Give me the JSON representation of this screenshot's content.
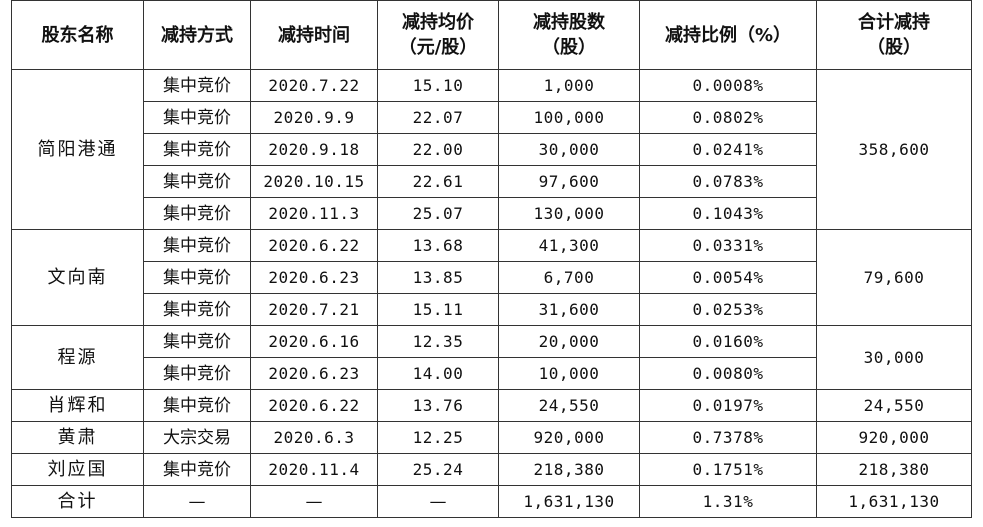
{
  "headers": {
    "shareholder": "股东名称",
    "method": "减持方式",
    "date": "减持时间",
    "avg_price": "减持均价\n（元/股）",
    "shares": "减持股数\n（股）",
    "ratio": "减持比例（%）",
    "total": "合计减持\n（股）"
  },
  "groups": [
    {
      "shareholder": "简阳港通",
      "total": "358,600",
      "rows": [
        {
          "method": "集中竞价",
          "date": "2020.7.22",
          "price": "15.10",
          "shares": "1,000",
          "ratio": "0.0008%"
        },
        {
          "method": "集中竞价",
          "date": "2020.9.9",
          "price": "22.07",
          "shares": "100,000",
          "ratio": "0.0802%"
        },
        {
          "method": "集中竞价",
          "date": "2020.9.18",
          "price": "22.00",
          "shares": "30,000",
          "ratio": "0.0241%"
        },
        {
          "method": "集中竞价",
          "date": "2020.10.15",
          "price": "22.61",
          "shares": "97,600",
          "ratio": "0.0783%"
        },
        {
          "method": "集中竞价",
          "date": "2020.11.3",
          "price": "25.07",
          "shares": "130,000",
          "ratio": "0.1043%"
        }
      ]
    },
    {
      "shareholder": "文向南",
      "total": "79,600",
      "rows": [
        {
          "method": "集中竞价",
          "date": "2020.6.22",
          "price": "13.68",
          "shares": "41,300",
          "ratio": "0.0331%"
        },
        {
          "method": "集中竞价",
          "date": "2020.6.23",
          "price": "13.85",
          "shares": "6,700",
          "ratio": "0.0054%"
        },
        {
          "method": "集中竞价",
          "date": "2020.7.21",
          "price": "15.11",
          "shares": "31,600",
          "ratio": "0.0253%"
        }
      ]
    },
    {
      "shareholder": "程源",
      "total": "30,000",
      "rows": [
        {
          "method": "集中竞价",
          "date": "2020.6.16",
          "price": "12.35",
          "shares": "20,000",
          "ratio": "0.0160%"
        },
        {
          "method": "集中竞价",
          "date": "2020.6.23",
          "price": "14.00",
          "shares": "10,000",
          "ratio": "0.0080%"
        }
      ]
    },
    {
      "shareholder": "肖辉和",
      "total": "24,550",
      "rows": [
        {
          "method": "集中竞价",
          "date": "2020.6.22",
          "price": "13.76",
          "shares": "24,550",
          "ratio": "0.0197%"
        }
      ]
    },
    {
      "shareholder": "黄肃",
      "total": "920,000",
      "rows": [
        {
          "method": "大宗交易",
          "date": "2020.6.3",
          "price": "12.25",
          "shares": "920,000",
          "ratio": "0.7378%"
        }
      ]
    },
    {
      "shareholder": "刘应国",
      "total": "218,380",
      "rows": [
        {
          "method": "集中竞价",
          "date": "2020.11.4",
          "price": "25.24",
          "shares": "218,380",
          "ratio": "0.1751%"
        }
      ]
    }
  ],
  "summary": {
    "label": "合计",
    "method": "—",
    "date": "—",
    "price": "—",
    "shares": "1,631,130",
    "ratio": "1.31%",
    "total": "1,631,130"
  }
}
